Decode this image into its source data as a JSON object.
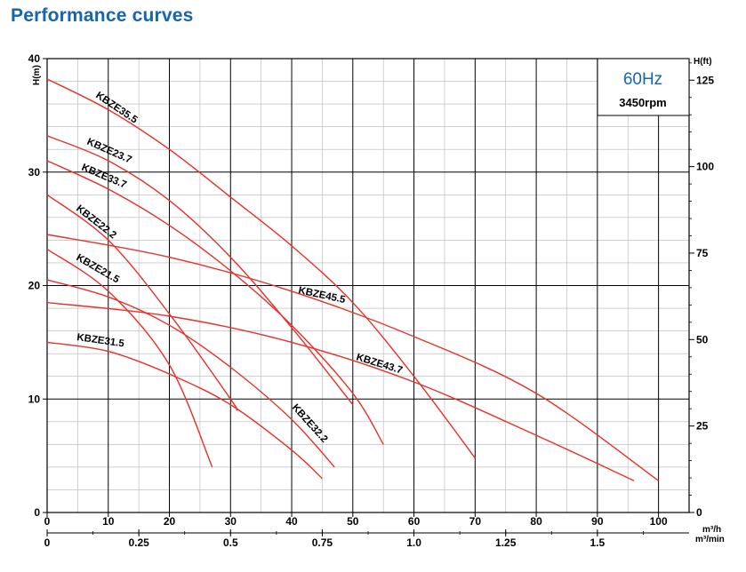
{
  "title": "Performance curves",
  "chart_data": {
    "type": "line",
    "title": "Performance curves",
    "xlabel": "m³/h",
    "xlabel_secondary": "m³/min",
    "ylabel": "H(m)",
    "ylabel_secondary": "H(ft)",
    "xlim": [
      0,
      105
    ],
    "ylim": [
      0,
      40
    ],
    "x_ticks": [
      "0",
      "10",
      "20",
      "30",
      "40",
      "50",
      "60",
      "70",
      "80",
      "90",
      "100"
    ],
    "x_ticks_secondary": [
      "0",
      "0.25",
      "0.5",
      "0.75",
      "1.0",
      "1.25",
      "1.5"
    ],
    "y_ticks": [
      "0",
      "10",
      "20",
      "30",
      "40"
    ],
    "y_ticks_secondary": [
      "0",
      "25",
      "50",
      "75",
      "100",
      "125"
    ],
    "grid": true,
    "annotation": {
      "frequency": "60Hz",
      "speed": "3450rpm"
    },
    "line_color": "#e8302a",
    "series": [
      {
        "name": "KBZE35.5",
        "x": [
          0,
          10,
          20,
          30,
          40,
          50,
          60,
          70
        ],
        "y": [
          38.2,
          35.5,
          32,
          27.8,
          23.5,
          18.5,
          12,
          4.8
        ]
      },
      {
        "name": "KBZE23.7",
        "x": [
          0,
          10,
          20,
          30,
          40,
          50
        ],
        "y": [
          33.2,
          31,
          27.5,
          22.5,
          16.3,
          9.5
        ]
      },
      {
        "name": "KBZE33.7",
        "x": [
          0,
          10,
          20,
          30,
          40,
          50,
          55
        ],
        "y": [
          31,
          28.5,
          25.3,
          21.3,
          16.5,
          10.5,
          6
        ]
      },
      {
        "name": "KBZE22.2",
        "x": [
          0,
          10,
          20,
          30,
          31
        ],
        "y": [
          28,
          24,
          17.5,
          10,
          9
        ]
      },
      {
        "name": "KBZE21.5",
        "x": [
          0,
          10,
          20,
          27
        ],
        "y": [
          23.2,
          19.5,
          13,
          4
        ]
      },
      {
        "name": "KBZE45.5",
        "x": [
          0,
          20,
          40,
          60,
          80,
          100
        ],
        "y": [
          24.5,
          22.5,
          19.5,
          15.5,
          10.5,
          2.8
        ]
      },
      {
        "name": "KBZE43.7",
        "x": [
          0,
          20,
          40,
          60,
          80,
          96
        ],
        "y": [
          18.5,
          17.3,
          15,
          11.5,
          6.8,
          2.8
        ]
      },
      {
        "name": "KBZE32.2",
        "x": [
          0,
          10,
          20,
          30,
          40,
          47
        ],
        "y": [
          20.5,
          19,
          16.5,
          12.8,
          8.2,
          4
        ]
      },
      {
        "name": "KBZE31.5",
        "x": [
          0,
          10,
          20,
          30,
          40,
          45
        ],
        "y": [
          15,
          14.2,
          12.2,
          9.5,
          5.5,
          3
        ]
      }
    ]
  }
}
